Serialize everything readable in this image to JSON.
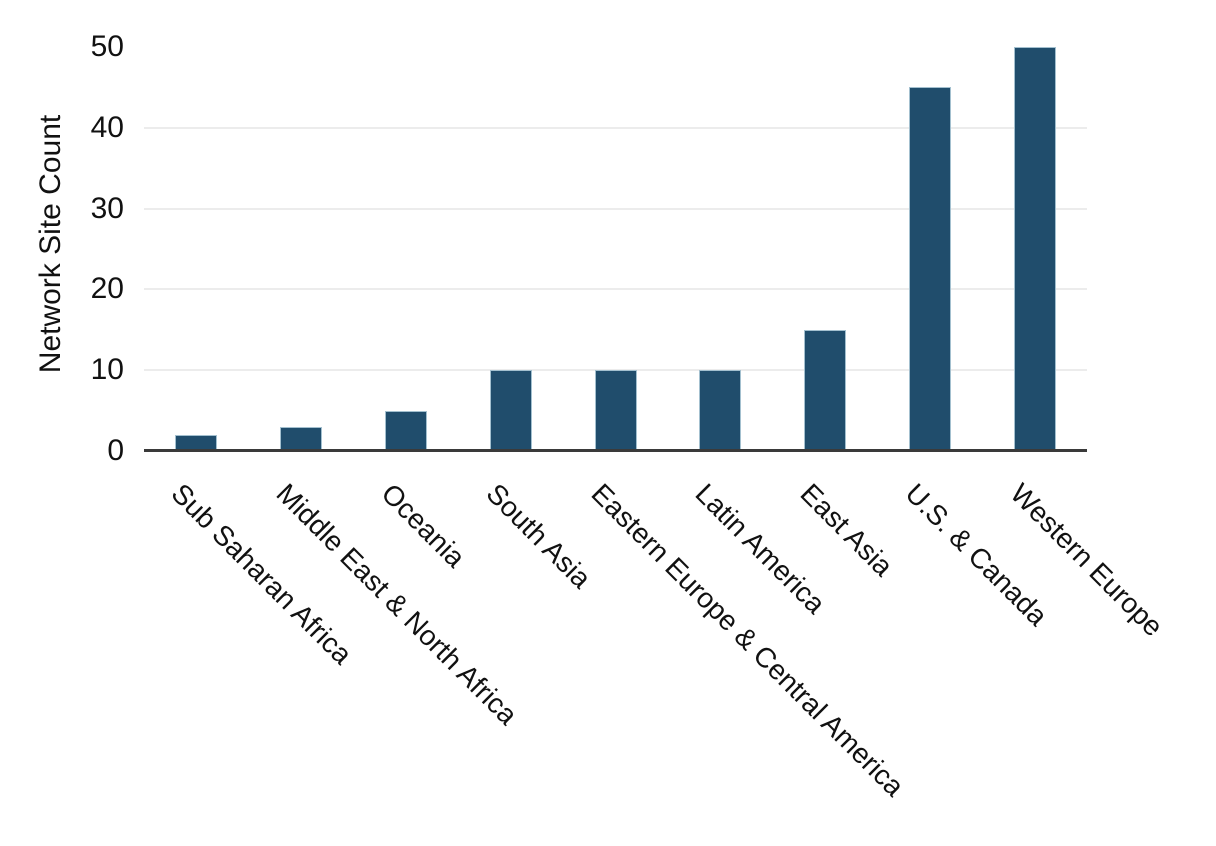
{
  "chart_data": {
    "type": "bar",
    "title": "",
    "xlabel": "",
    "ylabel": "Network Site Count",
    "categories": [
      "Sub Saharan Africa",
      "Middle East & North Africa",
      "Oceania",
      "South Asia",
      "Eastern Europe & Central America",
      "Latin America",
      "East Asia",
      "U.S. & Canada",
      "Western Europe"
    ],
    "values": [
      2,
      3,
      5,
      10,
      10,
      10,
      15,
      45,
      50
    ],
    "ylim": [
      0,
      50
    ],
    "yticks": [
      0,
      10,
      20,
      30,
      40,
      50
    ],
    "ytick_labels": [
      "0",
      "10",
      "20",
      "30",
      "40",
      "50"
    ],
    "grid": "horizontal gridlines at 10, 20, 30, 40; none at 0 and 50",
    "legend": "none",
    "x_label_rotation_deg": 45,
    "colors": {
      "bar_fill": "#204D6C",
      "bar_edge": "#A3C0CF",
      "gridline": "#ECECEC",
      "axis_line": "#3A3A3A",
      "text": "#111111",
      "background": "#FFFFFF"
    }
  }
}
